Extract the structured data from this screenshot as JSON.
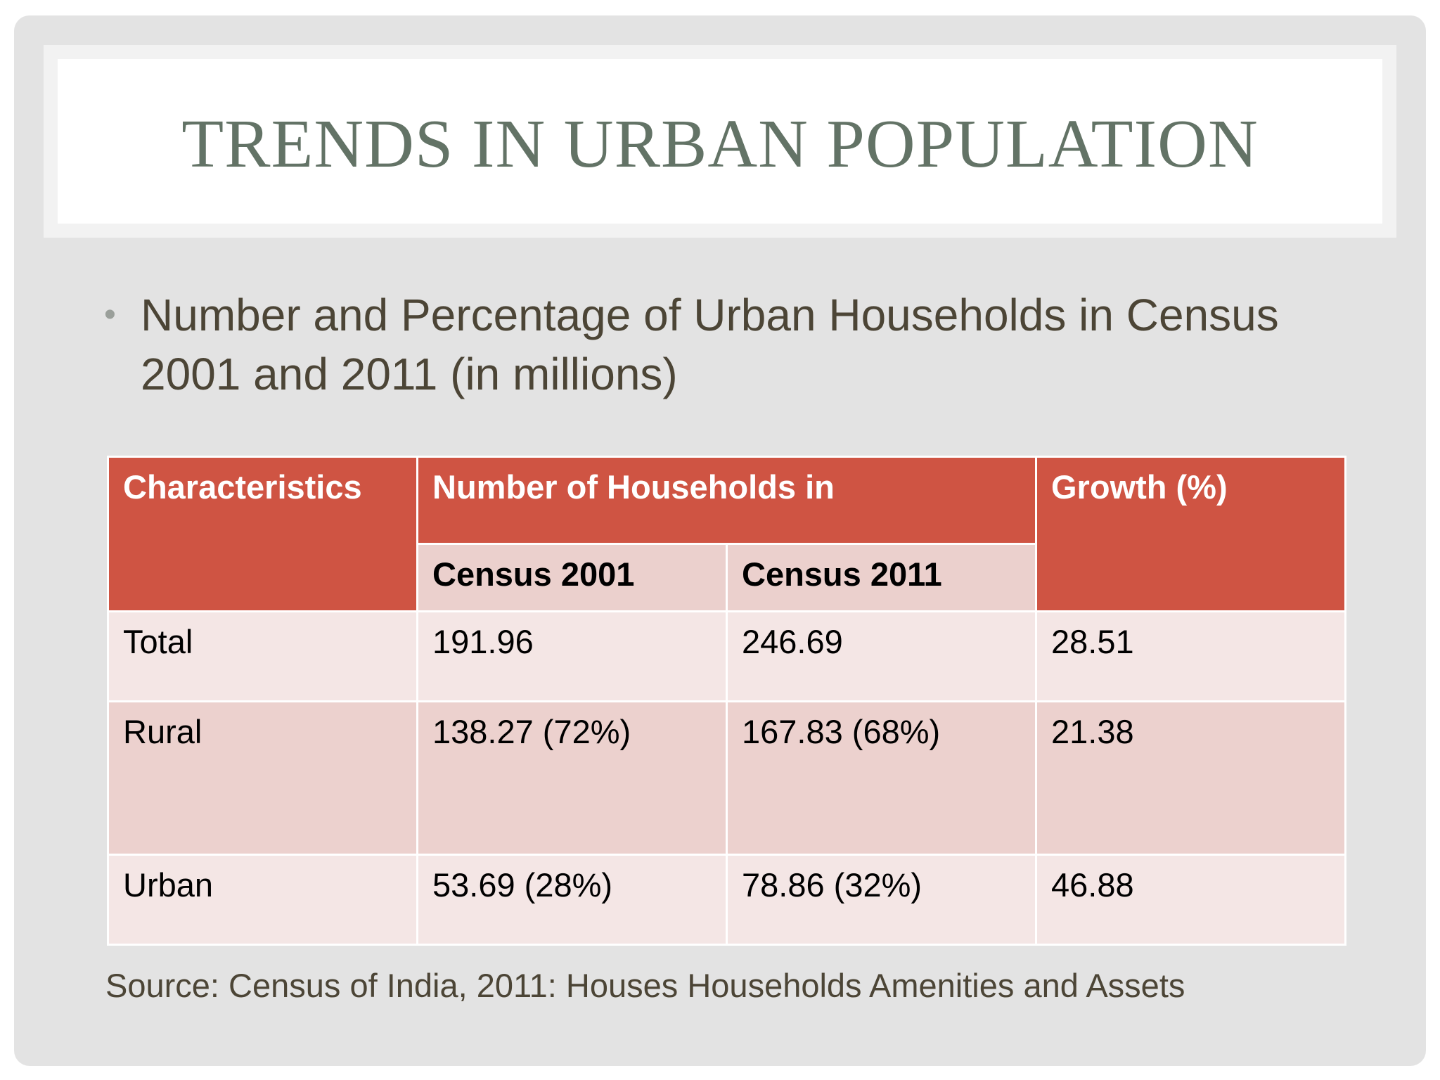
{
  "slide": {
    "title": "Trends in Urban Population",
    "bullet_symbol": "•",
    "bullet_text": "Number and Percentage of Urban Households in Census 2001 and 2011 (in millions)",
    "source": "Source: Census of India, 2011: Houses Households Amenities and Assets"
  },
  "table": {
    "headers": {
      "characteristics": "Characteristics",
      "households": "Number of Households in",
      "growth": "Growth (%)",
      "census_2001": "Census 2001",
      "census_2011": "Census 2011"
    },
    "rows": [
      {
        "label": "Total",
        "census_2001": "191.96",
        "census_2011": "246.69",
        "growth": "28.51"
      },
      {
        "label": "Rural",
        "census_2001": "138.27 (72%)",
        "census_2011": "167.83 (68%)",
        "growth": "21.38"
      },
      {
        "label": "Urban",
        "census_2001": "53.69 (28%)",
        "census_2011": "78.86 (32%)",
        "growth": "46.88"
      }
    ]
  },
  "colors": {
    "header_red": "#cf5443",
    "subheader_pink": "#ebd0cd",
    "row_light": "#f4e6e5",
    "row_dark": "#ecd1ce",
    "title_green_gray": "#637366",
    "body_text": "#4c4536",
    "slide_background": "#e3e3e3"
  }
}
